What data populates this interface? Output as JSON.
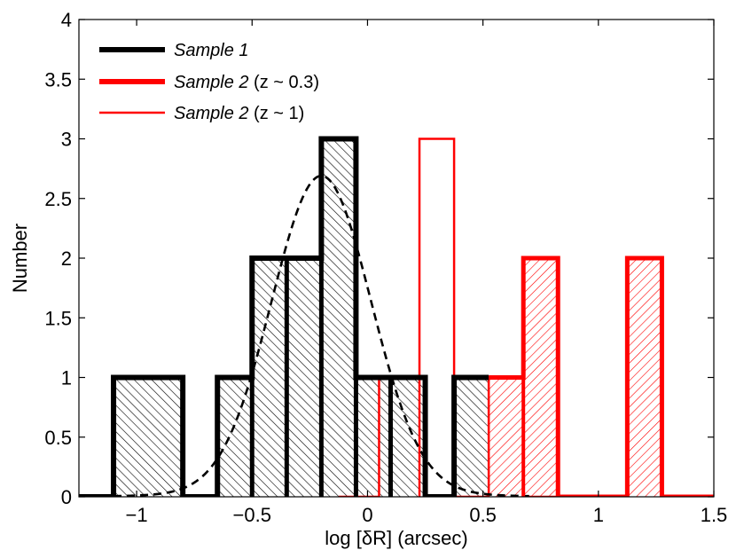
{
  "chart_data": {
    "type": "histogram",
    "title": "",
    "xlabel": "log [δR]  (arcsec)",
    "ylabel": "Number",
    "xlim": [
      -1.25,
      1.5
    ],
    "ylim": [
      0,
      4
    ],
    "xticks": [
      -1,
      -0.5,
      0,
      0.5,
      1,
      1.5
    ],
    "xtick_labels": [
      "−1",
      "−0.5",
      "0",
      "0.5",
      "1",
      "1.5"
    ],
    "yticks": [
      0,
      0.5,
      1,
      1.5,
      2,
      2.5,
      3,
      3.5,
      4
    ],
    "ytick_labels": [
      "0",
      "0.5",
      "1",
      "1.5",
      "2",
      "2.5",
      "3",
      "3.5",
      "4"
    ],
    "legend": [
      {
        "name": "Sample 1",
        "suffix": "",
        "color": "#000000",
        "style": "thick"
      },
      {
        "name": "Sample 2",
        "suffix": " (z ~ 0.3)",
        "color": "#ff0000",
        "style": "thick"
      },
      {
        "name": "Sample 2",
        "suffix": " (z ~ 1)",
        "color": "#ff0000",
        "style": "thin"
      }
    ],
    "series": [
      {
        "name": "Sample 1",
        "color": "#000000",
        "hatch": "backslash",
        "edges": [
          -1.25,
          -1.1,
          -0.8,
          -0.65,
          -0.5,
          -0.35,
          -0.2,
          -0.05,
          0.1,
          0.25,
          0.375,
          0.525
        ],
        "values": [
          0,
          1,
          0,
          1,
          2,
          2,
          3,
          1,
          1,
          0,
          1
        ]
      },
      {
        "name": "Sample 2 (z ~ 0.3)",
        "color": "#ff0000",
        "hatch": "slash",
        "edges": [
          0.525,
          0.675,
          0.825,
          0.975,
          1.125,
          1.275,
          1.5
        ],
        "values": [
          1,
          2,
          0,
          0,
          2,
          0
        ]
      },
      {
        "name": "Sample 2 (z ~ 1)",
        "color": "#ff0000",
        "hatch": "none",
        "edges": [
          -0.125,
          0.05,
          0.225,
          0.375,
          0.525,
          0.675,
          0.825
        ],
        "values": [
          0,
          1,
          3,
          0,
          1,
          0
        ]
      }
    ],
    "fit_curve": {
      "style": "dashed",
      "color": "#000000",
      "amplitude": 2.65,
      "mean": -0.2,
      "sigma": 0.215,
      "offset": 0.04,
      "x_range": [
        -1.1,
        0.7
      ]
    }
  }
}
